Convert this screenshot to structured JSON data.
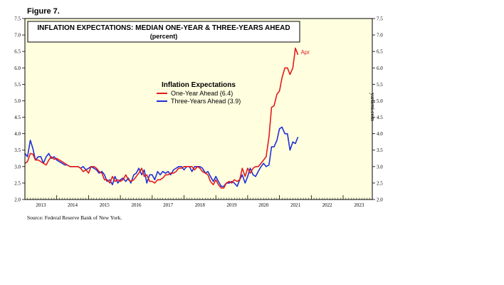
{
  "figure_label": "Figure 7.",
  "source": "Source: Federal Reserve Bank of New York.",
  "watermark": "yardeni.com",
  "colors": {
    "plot_bg": "#ffffe0",
    "one_year": "#e41a1c",
    "three_year": "#1f2fd6",
    "frame": "#000000"
  },
  "chart_data": {
    "type": "line",
    "title": "INFLATION EXPECTATIONS: MEDIAN ONE-YEAR & THREE-YEARS AHEAD",
    "subtitle": "(percent)",
    "legend_title": "Inflation Expectations",
    "legend_placement": "center-top",
    "end_annotation": "Apr",
    "xlabel": "",
    "ylabel": "",
    "xlim": [
      2013.0,
      2023.917
    ],
    "ylim": [
      2.0,
      7.5
    ],
    "y_ticks": [
      "2.0",
      "2.5",
      "3.0",
      "3.5",
      "4.0",
      "4.5",
      "5.0",
      "5.5",
      "6.0",
      "6.5",
      "7.0",
      "7.5"
    ],
    "x_tick_labels": [
      "2013",
      "2014",
      "2015",
      "2016",
      "2017",
      "2018",
      "2019",
      "2020",
      "2021",
      "2022",
      "2023"
    ],
    "grid": false,
    "series": [
      {
        "name": "One-Year Ahead (6.4)",
        "color": "#e41a1c",
        "points": [
          [
            2013.0,
            3.1
          ],
          [
            2013.08,
            3.15
          ],
          [
            2013.17,
            3.4
          ],
          [
            2013.25,
            3.38
          ],
          [
            2013.33,
            3.2
          ],
          [
            2013.42,
            3.2
          ],
          [
            2013.5,
            3.15
          ],
          [
            2013.58,
            3.1
          ],
          [
            2013.67,
            3.05
          ],
          [
            2013.75,
            3.2
          ],
          [
            2013.83,
            3.3
          ],
          [
            2013.92,
            3.22
          ],
          [
            2014.0,
            3.25
          ],
          [
            2014.08,
            3.2
          ],
          [
            2014.17,
            3.15
          ],
          [
            2014.25,
            3.1
          ],
          [
            2014.33,
            3.05
          ],
          [
            2014.42,
            3.0
          ],
          [
            2014.5,
            3.0
          ],
          [
            2014.58,
            3.0
          ],
          [
            2014.67,
            3.0
          ],
          [
            2014.75,
            2.95
          ],
          [
            2014.83,
            2.85
          ],
          [
            2014.92,
            2.9
          ],
          [
            2015.0,
            2.8
          ],
          [
            2015.08,
            3.0
          ],
          [
            2015.17,
            3.0
          ],
          [
            2015.25,
            2.95
          ],
          [
            2015.33,
            2.85
          ],
          [
            2015.42,
            2.8
          ],
          [
            2015.5,
            2.6
          ],
          [
            2015.58,
            2.6
          ],
          [
            2015.67,
            2.5
          ],
          [
            2015.75,
            2.7
          ],
          [
            2015.83,
            2.55
          ],
          [
            2015.92,
            2.6
          ],
          [
            2016.0,
            2.55
          ],
          [
            2016.08,
            2.6
          ],
          [
            2016.17,
            2.75
          ],
          [
            2016.25,
            2.6
          ],
          [
            2016.33,
            2.55
          ],
          [
            2016.42,
            2.6
          ],
          [
            2016.5,
            2.7
          ],
          [
            2016.58,
            2.8
          ],
          [
            2016.67,
            2.95
          ],
          [
            2016.75,
            2.7
          ],
          [
            2016.83,
            2.75
          ],
          [
            2016.92,
            2.55
          ],
          [
            2017.0,
            2.55
          ],
          [
            2017.08,
            2.5
          ],
          [
            2017.17,
            2.6
          ],
          [
            2017.25,
            2.6
          ],
          [
            2017.33,
            2.65
          ],
          [
            2017.42,
            2.75
          ],
          [
            2017.5,
            2.75
          ],
          [
            2017.58,
            2.8
          ],
          [
            2017.67,
            2.8
          ],
          [
            2017.75,
            2.85
          ],
          [
            2017.83,
            2.95
          ],
          [
            2017.92,
            2.95
          ],
          [
            2018.0,
            3.0
          ],
          [
            2018.08,
            3.0
          ],
          [
            2018.17,
            3.0
          ],
          [
            2018.25,
            3.0
          ],
          [
            2018.33,
            2.9
          ],
          [
            2018.42,
            3.0
          ],
          [
            2018.5,
            2.95
          ],
          [
            2018.58,
            2.85
          ],
          [
            2018.67,
            2.8
          ],
          [
            2018.75,
            2.75
          ],
          [
            2018.83,
            2.55
          ],
          [
            2018.92,
            2.45
          ],
          [
            2019.0,
            2.6
          ],
          [
            2019.08,
            2.45
          ],
          [
            2019.17,
            2.35
          ],
          [
            2019.25,
            2.35
          ],
          [
            2019.33,
            2.5
          ],
          [
            2019.42,
            2.55
          ],
          [
            2019.5,
            2.5
          ],
          [
            2019.58,
            2.6
          ],
          [
            2019.67,
            2.55
          ],
          [
            2019.75,
            2.6
          ],
          [
            2019.83,
            2.95
          ],
          [
            2019.92,
            2.7
          ],
          [
            2020.0,
            2.95
          ],
          [
            2020.08,
            2.8
          ],
          [
            2020.17,
            2.95
          ],
          [
            2020.25,
            3.0
          ],
          [
            2020.33,
            3.0
          ],
          [
            2020.42,
            3.1
          ],
          [
            2020.5,
            3.2
          ],
          [
            2020.58,
            3.3
          ],
          [
            2020.67,
            3.9
          ],
          [
            2020.75,
            4.8
          ],
          [
            2020.83,
            4.85
          ],
          [
            2020.92,
            5.2
          ],
          [
            2021.0,
            5.3
          ],
          [
            2021.08,
            5.7
          ],
          [
            2021.17,
            6.0
          ],
          [
            2021.25,
            6.0
          ],
          [
            2021.33,
            5.8
          ],
          [
            2021.42,
            6.0
          ],
          [
            2021.5,
            6.6
          ],
          [
            2021.58,
            6.4
          ]
        ]
      },
      {
        "name": "Three-Years Ahead (3.9)",
        "color": "#1f2fd6",
        "points": [
          [
            2013.0,
            3.4
          ],
          [
            2013.08,
            3.3
          ],
          [
            2013.17,
            3.8
          ],
          [
            2013.25,
            3.55
          ],
          [
            2013.33,
            3.2
          ],
          [
            2013.42,
            3.3
          ],
          [
            2013.5,
            3.3
          ],
          [
            2013.58,
            3.1
          ],
          [
            2013.67,
            3.3
          ],
          [
            2013.75,
            3.4
          ],
          [
            2013.83,
            3.25
          ],
          [
            2013.92,
            3.3
          ],
          [
            2014.0,
            3.2
          ],
          [
            2014.08,
            3.15
          ],
          [
            2014.17,
            3.1
          ],
          [
            2014.25,
            3.05
          ],
          [
            2014.33,
            3.05
          ],
          [
            2014.42,
            3.0
          ],
          [
            2014.5,
            3.0
          ],
          [
            2014.58,
            3.0
          ],
          [
            2014.67,
            3.0
          ],
          [
            2014.75,
            2.95
          ],
          [
            2014.83,
            3.0
          ],
          [
            2014.92,
            2.9
          ],
          [
            2015.0,
            2.95
          ],
          [
            2015.08,
            3.0
          ],
          [
            2015.17,
            2.95
          ],
          [
            2015.25,
            2.9
          ],
          [
            2015.33,
            2.8
          ],
          [
            2015.42,
            2.85
          ],
          [
            2015.5,
            2.75
          ],
          [
            2015.58,
            2.55
          ],
          [
            2015.67,
            2.6
          ],
          [
            2015.75,
            2.45
          ],
          [
            2015.83,
            2.7
          ],
          [
            2015.92,
            2.5
          ],
          [
            2016.0,
            2.6
          ],
          [
            2016.08,
            2.65
          ],
          [
            2016.17,
            2.55
          ],
          [
            2016.25,
            2.65
          ],
          [
            2016.33,
            2.5
          ],
          [
            2016.42,
            2.75
          ],
          [
            2016.5,
            2.8
          ],
          [
            2016.58,
            2.95
          ],
          [
            2016.67,
            2.75
          ],
          [
            2016.75,
            2.9
          ],
          [
            2016.83,
            2.5
          ],
          [
            2016.92,
            2.75
          ],
          [
            2017.0,
            2.75
          ],
          [
            2017.08,
            2.6
          ],
          [
            2017.17,
            2.85
          ],
          [
            2017.25,
            2.75
          ],
          [
            2017.33,
            2.85
          ],
          [
            2017.42,
            2.8
          ],
          [
            2017.5,
            2.85
          ],
          [
            2017.58,
            2.75
          ],
          [
            2017.67,
            2.9
          ],
          [
            2017.75,
            2.95
          ],
          [
            2017.83,
            3.0
          ],
          [
            2017.92,
            3.0
          ],
          [
            2018.0,
            2.9
          ],
          [
            2018.08,
            3.0
          ],
          [
            2018.17,
            3.0
          ],
          [
            2018.25,
            2.85
          ],
          [
            2018.33,
            3.0
          ],
          [
            2018.42,
            3.0
          ],
          [
            2018.5,
            3.0
          ],
          [
            2018.58,
            2.95
          ],
          [
            2018.67,
            2.8
          ],
          [
            2018.75,
            2.85
          ],
          [
            2018.83,
            2.7
          ],
          [
            2018.92,
            2.55
          ],
          [
            2019.0,
            2.7
          ],
          [
            2019.08,
            2.55
          ],
          [
            2019.17,
            2.4
          ],
          [
            2019.25,
            2.4
          ],
          [
            2019.33,
            2.5
          ],
          [
            2019.42,
            2.5
          ],
          [
            2019.5,
            2.55
          ],
          [
            2019.58,
            2.5
          ],
          [
            2019.67,
            2.4
          ],
          [
            2019.75,
            2.6
          ],
          [
            2019.83,
            2.75
          ],
          [
            2019.92,
            2.5
          ],
          [
            2020.0,
            2.7
          ],
          [
            2020.08,
            2.95
          ],
          [
            2020.17,
            2.75
          ],
          [
            2020.25,
            2.7
          ],
          [
            2020.33,
            2.85
          ],
          [
            2020.42,
            3.0
          ],
          [
            2020.5,
            3.1
          ],
          [
            2020.58,
            3.0
          ],
          [
            2020.67,
            3.05
          ],
          [
            2020.75,
            3.6
          ],
          [
            2020.83,
            3.6
          ],
          [
            2020.92,
            3.8
          ],
          [
            2021.0,
            4.15
          ],
          [
            2021.08,
            4.2
          ],
          [
            2021.17,
            4.0
          ],
          [
            2021.25,
            4.0
          ],
          [
            2021.33,
            3.5
          ],
          [
            2021.42,
            3.75
          ],
          [
            2021.5,
            3.7
          ],
          [
            2021.58,
            3.9
          ]
        ]
      }
    ]
  }
}
